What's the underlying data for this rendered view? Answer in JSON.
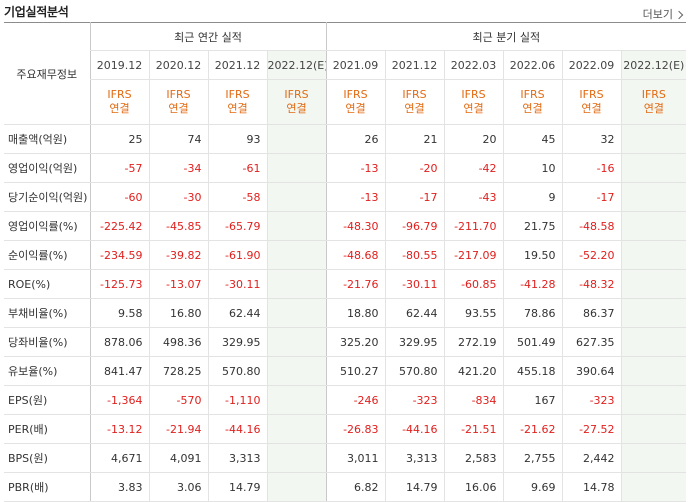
{
  "header": {
    "title": "기업실적분석",
    "more_label": "더보기"
  },
  "table": {
    "row_header_label": "주요재무정보",
    "annual_group_label": "최근 연간 실적",
    "quarter_group_label": "최근 분기 실적",
    "annual_periods": [
      "2019.12",
      "2020.12",
      "2021.12",
      "2022.12(E)"
    ],
    "quarter_periods": [
      "2021.09",
      "2021.12",
      "2022.03",
      "2022.06",
      "2022.09",
      "2022.12(E)"
    ],
    "basis_line1": "IFRS",
    "basis_line2": "연결",
    "rows": [
      {
        "label": "매출액(억원)",
        "values": [
          "25",
          "74",
          "93",
          "",
          "26",
          "21",
          "20",
          "45",
          "32",
          ""
        ]
      },
      {
        "label": "영업이익(억원)",
        "values": [
          "-57",
          "-34",
          "-61",
          "",
          "-13",
          "-20",
          "-42",
          "10",
          "-16",
          ""
        ]
      },
      {
        "label": "당기순이익(억원)",
        "values": [
          "-60",
          "-30",
          "-58",
          "",
          "-13",
          "-17",
          "-43",
          "9",
          "-17",
          ""
        ]
      },
      {
        "label": "영업이익률(%)",
        "values": [
          "-225.42",
          "-45.85",
          "-65.79",
          "",
          "-48.30",
          "-96.79",
          "-211.70",
          "21.75",
          "-48.58",
          ""
        ]
      },
      {
        "label": "순이익률(%)",
        "values": [
          "-234.59",
          "-39.82",
          "-61.90",
          "",
          "-48.68",
          "-80.55",
          "-217.09",
          "19.50",
          "-52.20",
          ""
        ]
      },
      {
        "label": "ROE(%)",
        "values": [
          "-125.73",
          "-13.07",
          "-30.11",
          "",
          "-21.76",
          "-30.11",
          "-60.85",
          "-41.28",
          "-48.32",
          ""
        ]
      },
      {
        "label": "부채비율(%)",
        "values": [
          "9.58",
          "16.80",
          "62.44",
          "",
          "18.80",
          "62.44",
          "93.55",
          "78.86",
          "86.37",
          ""
        ]
      },
      {
        "label": "당좌비율(%)",
        "values": [
          "878.06",
          "498.36",
          "329.95",
          "",
          "325.20",
          "329.95",
          "272.19",
          "501.49",
          "627.35",
          ""
        ]
      },
      {
        "label": "유보율(%)",
        "values": [
          "841.47",
          "728.25",
          "570.80",
          "",
          "510.27",
          "570.80",
          "421.20",
          "455.18",
          "390.64",
          ""
        ]
      },
      {
        "label": "EPS(원)",
        "values": [
          "-1,364",
          "-570",
          "-1,110",
          "",
          "-246",
          "-323",
          "-834",
          "167",
          "-323",
          ""
        ]
      },
      {
        "label": "PER(배)",
        "values": [
          "-13.12",
          "-21.94",
          "-44.16",
          "",
          "-26.83",
          "-44.16",
          "-21.51",
          "-21.62",
          "-27.52",
          ""
        ]
      },
      {
        "label": "BPS(원)",
        "values": [
          "4,671",
          "4,091",
          "3,313",
          "",
          "3,011",
          "3,313",
          "2,583",
          "2,755",
          "2,442",
          ""
        ]
      },
      {
        "label": "PBR(배)",
        "values": [
          "3.83",
          "3.06",
          "14.79",
          "",
          "6.82",
          "14.79",
          "16.06",
          "9.69",
          "14.78",
          ""
        ]
      }
    ]
  }
}
